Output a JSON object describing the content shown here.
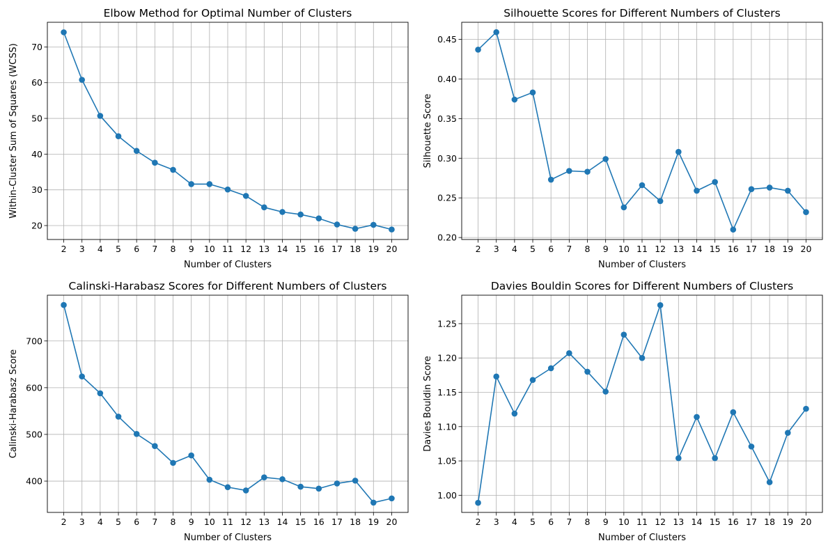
{
  "colors": {
    "line": "#1f77b4",
    "grid": "#b0b0b0",
    "axes": "#000000"
  },
  "chart_data": [
    {
      "type": "line",
      "title": "Elbow Method for Optimal Number of Clusters",
      "xlabel": "Number of Clusters",
      "ylabel": "Within-Cluster Sum of Squares (WCSS)",
      "grid": true,
      "marker": "circle",
      "x": [
        2,
        3,
        4,
        5,
        6,
        7,
        8,
        9,
        10,
        11,
        12,
        13,
        14,
        15,
        16,
        17,
        18,
        19,
        20
      ],
      "y": [
        74.1,
        60.8,
        50.7,
        45.0,
        40.9,
        37.6,
        35.6,
        31.6,
        31.6,
        30.1,
        28.3,
        25.1,
        23.8,
        23.1,
        22.0,
        20.3,
        19.1,
        20.2,
        18.9
      ],
      "xticks": [
        "2",
        "3",
        "4",
        "5",
        "6",
        "7",
        "8",
        "9",
        "10",
        "11",
        "12",
        "13",
        "14",
        "15",
        "16",
        "17",
        "18",
        "19",
        "20"
      ],
      "yticks": [
        20,
        30,
        40,
        50,
        60,
        70
      ],
      "ytick_labels": [
        "20",
        "30",
        "40",
        "50",
        "60",
        "70"
      ],
      "xlim": [
        1.1,
        20.9
      ],
      "ylim": [
        16.1,
        76.9
      ]
    },
    {
      "type": "line",
      "title": "Silhouette Scores for Different Numbers of Clusters",
      "xlabel": "Number of Clusters",
      "ylabel": "Silhouette Score",
      "grid": true,
      "marker": "circle",
      "x": [
        2,
        3,
        4,
        5,
        6,
        7,
        8,
        9,
        10,
        11,
        12,
        13,
        14,
        15,
        16,
        17,
        18,
        19,
        20
      ],
      "y": [
        0.437,
        0.459,
        0.374,
        0.383,
        0.273,
        0.284,
        0.283,
        0.299,
        0.238,
        0.266,
        0.246,
        0.308,
        0.259,
        0.27,
        0.21,
        0.261,
        0.263,
        0.259,
        0.232
      ],
      "xticks": [
        "2",
        "3",
        "4",
        "5",
        "6",
        "7",
        "8",
        "9",
        "10",
        "11",
        "12",
        "13",
        "14",
        "15",
        "16",
        "17",
        "18",
        "19",
        "20"
      ],
      "yticks": [
        0.2,
        0.25,
        0.3,
        0.35,
        0.4,
        0.45
      ],
      "ytick_labels": [
        "0.20",
        "0.25",
        "0.30",
        "0.35",
        "0.40",
        "0.45"
      ],
      "xlim": [
        1.1,
        20.9
      ],
      "ylim": [
        0.1975,
        0.4715
      ]
    },
    {
      "type": "line",
      "title": "Calinski-Harabasz Scores for Different Numbers of Clusters",
      "xlabel": "Number of Clusters",
      "ylabel": "Calinski-Harabasz Score",
      "grid": true,
      "marker": "circle",
      "x": [
        2,
        3,
        4,
        5,
        6,
        7,
        8,
        9,
        10,
        11,
        12,
        13,
        14,
        15,
        16,
        17,
        18,
        19,
        20
      ],
      "y": [
        777,
        624,
        588,
        538,
        501,
        475,
        439,
        455,
        403,
        387,
        380,
        408,
        404,
        388,
        384,
        395,
        401,
        354,
        363
      ],
      "xticks": [
        "2",
        "3",
        "4",
        "5",
        "6",
        "7",
        "8",
        "9",
        "10",
        "11",
        "12",
        "13",
        "14",
        "15",
        "16",
        "17",
        "18",
        "19",
        "20"
      ],
      "yticks": [
        400,
        500,
        600,
        700
      ],
      "ytick_labels": [
        "400",
        "500",
        "600",
        "700"
      ],
      "xlim": [
        1.1,
        20.9
      ],
      "ylim": [
        333,
        798
      ]
    },
    {
      "type": "line",
      "title": "Davies Bouldin Scores for Different Numbers of Clusters",
      "xlabel": "Number of Clusters",
      "ylabel": "Davies Bouldin Score",
      "grid": true,
      "marker": "circle",
      "x": [
        2,
        3,
        4,
        5,
        6,
        7,
        8,
        9,
        10,
        11,
        12,
        13,
        14,
        15,
        16,
        17,
        18,
        19,
        20
      ],
      "y": [
        0.989,
        1.173,
        1.119,
        1.168,
        1.185,
        1.207,
        1.18,
        1.151,
        1.234,
        1.2,
        1.277,
        1.054,
        1.114,
        1.054,
        1.121,
        1.071,
        1.019,
        1.091,
        1.126
      ],
      "xticks": [
        "2",
        "3",
        "4",
        "5",
        "6",
        "7",
        "8",
        "9",
        "10",
        "11",
        "12",
        "13",
        "14",
        "15",
        "16",
        "17",
        "18",
        "19",
        "20"
      ],
      "yticks": [
        1.0,
        1.05,
        1.1,
        1.15,
        1.2,
        1.25
      ],
      "ytick_labels": [
        "1.00",
        "1.05",
        "1.10",
        "1.15",
        "1.20",
        "1.25"
      ],
      "xlim": [
        1.1,
        20.9
      ],
      "ylim": [
        0.975,
        1.2915
      ]
    }
  ]
}
